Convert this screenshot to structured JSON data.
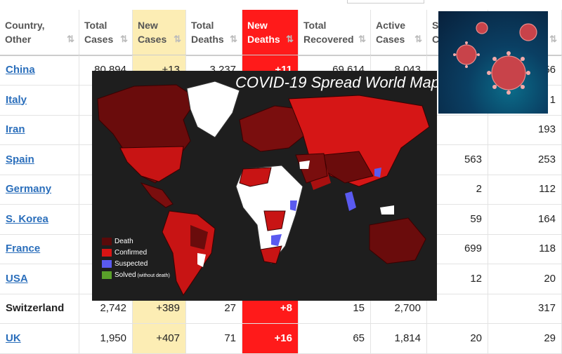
{
  "headers": [
    {
      "label": "Country,\nOther"
    },
    {
      "label": "Total\nCases"
    },
    {
      "label": "New\nCases"
    },
    {
      "label": "Total\nDeaths"
    },
    {
      "label": "New\nDeaths"
    },
    {
      "label": "Total\nRecovered"
    },
    {
      "label": "Active\nCases"
    },
    {
      "label": "S\nC"
    },
    {
      "label": ""
    }
  ],
  "rows": [
    {
      "country": "China",
      "link": true,
      "cells": [
        "80,894",
        "+13",
        "3,237",
        "+11",
        "69,614",
        "8,043",
        "",
        "56"
      ]
    },
    {
      "country": "Italy",
      "link": true,
      "cells": [
        "",
        "",
        "",
        "",
        "",
        "",
        "",
        "1"
      ]
    },
    {
      "country": "Iran",
      "link": true,
      "cells": [
        "",
        "",
        "",
        "",
        "",
        "",
        "",
        "193"
      ]
    },
    {
      "country": "Spain",
      "link": true,
      "cells": [
        "",
        "",
        "",
        "",
        "",
        "",
        "563",
        "253"
      ]
    },
    {
      "country": "Germany",
      "link": true,
      "cells": [
        "",
        "",
        "",
        "",
        "",
        "",
        "2",
        "112"
      ]
    },
    {
      "country": "S. Korea",
      "link": true,
      "cells": [
        "",
        "",
        "",
        "",
        "",
        "",
        "59",
        "164"
      ]
    },
    {
      "country": "France",
      "link": true,
      "cells": [
        "",
        "",
        "",
        "",
        "",
        "",
        "699",
        "118"
      ]
    },
    {
      "country": "USA",
      "link": true,
      "cells": [
        "",
        "",
        "",
        "",
        "",
        "",
        "12",
        "20"
      ]
    },
    {
      "country": "Switzerland",
      "link": false,
      "cells": [
        "2,742",
        "+389",
        "27",
        "+8",
        "15",
        "2,700",
        "",
        "317"
      ]
    },
    {
      "country": "UK",
      "link": true,
      "cells": [
        "1,950",
        "+407",
        "71",
        "+16",
        "65",
        "1,814",
        "20",
        "29"
      ]
    }
  ],
  "map": {
    "title": "COVID-19 Spread World Map",
    "legend": [
      {
        "label": "Death",
        "color": "#5a0a0a"
      },
      {
        "label": "Confirmed",
        "color": "#d91414"
      },
      {
        "label": "Suspected",
        "color": "#5a5af0"
      },
      {
        "label": "Solved",
        "note": "(without death)",
        "color": "#5aa02a"
      }
    ]
  },
  "colors": {
    "link": "#2a6ebb",
    "new_cases_bg": "#fcedb4",
    "new_deaths_bg": "#ff1a1a"
  }
}
